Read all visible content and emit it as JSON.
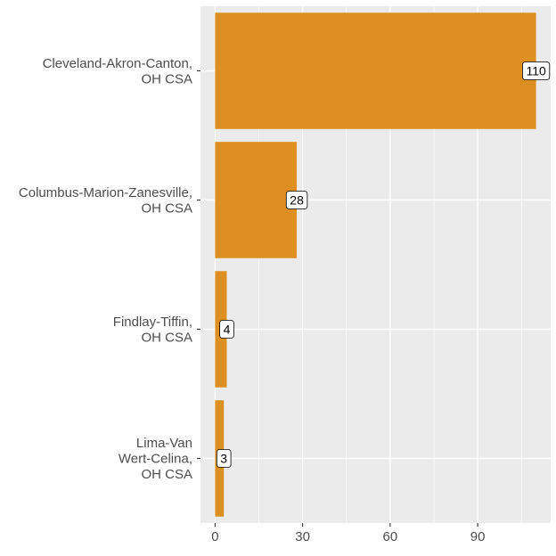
{
  "chart_data": {
    "type": "bar",
    "orientation": "horizontal",
    "categories": [
      [
        "Cleveland-Akron-Canton,",
        "OH CSA"
      ],
      [
        "Columbus-Marion-Zanesville,",
        "OH CSA"
      ],
      [
        "Findlay-Tiffin,",
        "OH CSA"
      ],
      [
        "Lima-Van",
        "Wert-Celina,",
        "OH CSA"
      ]
    ],
    "values": [
      110,
      28,
      4,
      3
    ],
    "data_labels": [
      "110",
      "28",
      "4",
      "3"
    ],
    "title": "",
    "xlabel": "",
    "ylabel": "",
    "xlim": [
      -5,
      115
    ],
    "x_ticks": [
      0,
      30,
      60,
      90
    ],
    "x_tick_labels": [
      "0",
      "30",
      "60",
      "90"
    ],
    "grid": true,
    "legend": "none",
    "colors": {
      "bar": "#DE8F22",
      "panel_background": "#EBEBEB",
      "grid_line": "#FFFFFF",
      "axis_text": "#4D4D4D"
    }
  }
}
